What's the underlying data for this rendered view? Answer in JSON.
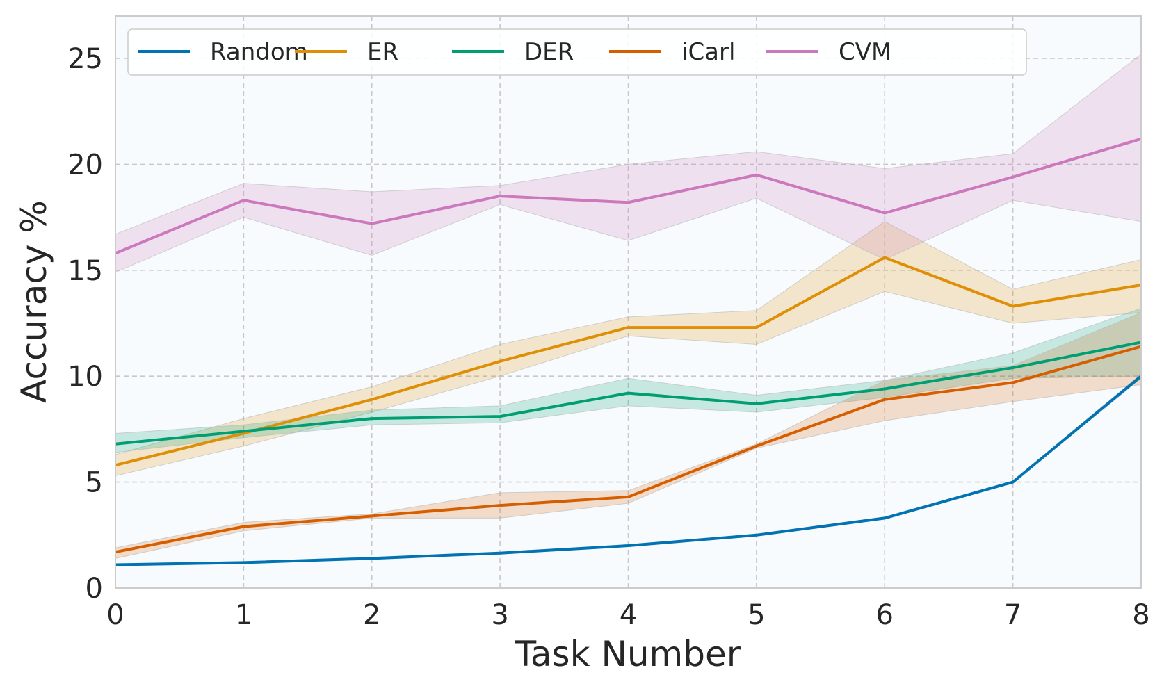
{
  "chart_data": {
    "type": "line",
    "title": "",
    "xlabel": "Task Number",
    "ylabel": "Accuracy %",
    "x": [
      0,
      1,
      2,
      3,
      4,
      5,
      6,
      7,
      8
    ],
    "xticks": [
      "0",
      "1",
      "2",
      "3",
      "4",
      "5",
      "6",
      "7",
      "8"
    ],
    "yticks": [
      "0",
      "5",
      "10",
      "15",
      "20",
      "25"
    ],
    "xlim": [
      0,
      8
    ],
    "ylim": [
      0,
      27
    ],
    "grid": true,
    "legend_position": "top",
    "series": [
      {
        "name": "Random",
        "color": "#0173b2",
        "values": [
          1.1,
          1.2,
          1.4,
          1.65,
          2.0,
          2.5,
          3.3,
          5.0,
          10.0
        ],
        "lower": [
          1.05,
          1.15,
          1.35,
          1.6,
          1.95,
          2.45,
          3.25,
          4.95,
          9.9
        ],
        "upper": [
          1.15,
          1.25,
          1.45,
          1.7,
          2.05,
          2.55,
          3.35,
          5.05,
          10.1
        ]
      },
      {
        "name": "ER",
        "color": "#de8f05",
        "values": [
          5.8,
          7.3,
          8.9,
          10.7,
          12.3,
          12.3,
          15.6,
          13.3,
          14.3
        ],
        "lower": [
          5.3,
          6.7,
          8.3,
          10.0,
          11.9,
          11.5,
          14.0,
          12.5,
          13.0
        ],
        "upper": [
          6.3,
          8.0,
          9.5,
          11.5,
          12.8,
          13.1,
          17.3,
          14.1,
          15.5
        ]
      },
      {
        "name": "DER",
        "color": "#029e73",
        "values": [
          6.8,
          7.4,
          8.0,
          8.1,
          9.2,
          8.7,
          9.4,
          10.4,
          11.6
        ],
        "lower": [
          6.4,
          7.1,
          7.7,
          7.8,
          8.6,
          8.3,
          9.0,
          9.9,
          10.0
        ],
        "upper": [
          7.3,
          7.7,
          8.4,
          8.6,
          9.9,
          9.1,
          9.8,
          11.1,
          13.2
        ]
      },
      {
        "name": "iCarl",
        "color": "#d55e00",
        "values": [
          1.7,
          2.9,
          3.4,
          3.9,
          4.3,
          6.7,
          8.9,
          9.7,
          11.4
        ],
        "lower": [
          1.4,
          2.7,
          3.3,
          3.3,
          4.0,
          6.6,
          7.9,
          8.8,
          9.6
        ],
        "upper": [
          1.9,
          3.1,
          3.5,
          4.5,
          4.6,
          6.8,
          9.8,
          10.5,
          13.0
        ]
      },
      {
        "name": "CVM",
        "color": "#cc78bc",
        "values": [
          15.8,
          18.3,
          17.2,
          18.5,
          18.2,
          19.5,
          17.7,
          19.4,
          21.2
        ],
        "lower": [
          14.9,
          17.5,
          15.7,
          18.1,
          16.4,
          18.4,
          15.5,
          18.3,
          17.3
        ],
        "upper": [
          16.7,
          19.1,
          18.7,
          19.0,
          20.0,
          20.6,
          19.8,
          20.5,
          25.2
        ]
      }
    ]
  }
}
